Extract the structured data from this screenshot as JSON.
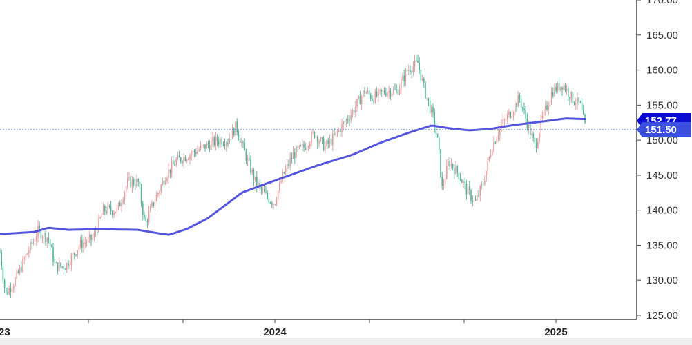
{
  "chart_data": {
    "type": "candlestick",
    "ylim": [
      125,
      170
    ],
    "y_ticks": [
      125,
      130,
      135,
      140,
      145,
      150,
      155,
      160,
      165,
      170
    ],
    "y_tick_labels": [
      "125.00",
      "130.00",
      "135.00",
      "140.00",
      "145.00",
      "150.00",
      "155.00",
      "160.00",
      "165.00",
      "170.00"
    ],
    "x_labels": [
      "23",
      "2024",
      "2025"
    ],
    "grid": false,
    "price_series_anchors": [
      [
        0,
        134
      ],
      [
        8,
        128
      ],
      [
        22,
        130
      ],
      [
        40,
        134
      ],
      [
        55,
        137
      ],
      [
        70,
        136
      ],
      [
        80,
        132
      ],
      [
        95,
        132
      ],
      [
        115,
        135
      ],
      [
        135,
        136
      ],
      [
        150,
        140
      ],
      [
        170,
        140
      ],
      [
        185,
        144
      ],
      [
        200,
        144
      ],
      [
        210,
        138
      ],
      [
        222,
        141
      ],
      [
        240,
        145
      ],
      [
        255,
        147
      ],
      [
        275,
        148
      ],
      [
        295,
        149
      ],
      [
        315,
        150
      ],
      [
        330,
        150
      ],
      [
        342,
        152
      ],
      [
        355,
        148
      ],
      [
        370,
        144
      ],
      [
        385,
        142
      ],
      [
        397,
        141
      ],
      [
        410,
        145
      ],
      [
        425,
        148
      ],
      [
        440,
        149
      ],
      [
        455,
        151
      ],
      [
        470,
        149
      ],
      [
        480,
        150
      ],
      [
        495,
        152
      ],
      [
        510,
        154
      ],
      [
        528,
        157
      ],
      [
        540,
        156
      ],
      [
        558,
        157
      ],
      [
        575,
        157
      ],
      [
        590,
        160
      ],
      [
        605,
        161
      ],
      [
        615,
        157
      ],
      [
        628,
        153
      ],
      [
        635,
        149
      ],
      [
        640,
        143
      ],
      [
        650,
        147
      ],
      [
        665,
        145
      ],
      [
        675,
        143
      ],
      [
        688,
        141
      ],
      [
        700,
        144
      ],
      [
        712,
        149
      ],
      [
        725,
        152
      ],
      [
        740,
        154
      ],
      [
        752,
        156
      ],
      [
        765,
        152
      ],
      [
        775,
        149
      ],
      [
        785,
        153
      ],
      [
        800,
        157
      ],
      [
        815,
        158
      ],
      [
        828,
        156
      ],
      [
        840,
        155
      ],
      [
        848,
        151.5
      ]
    ],
    "moving_average_anchors": [
      [
        0,
        136.6
      ],
      [
        50,
        136.9
      ],
      [
        70,
        137.5
      ],
      [
        100,
        137.2
      ],
      [
        140,
        137.3
      ],
      [
        200,
        137.2
      ],
      [
        230,
        136.7
      ],
      [
        245,
        136.5
      ],
      [
        270,
        137.3
      ],
      [
        300,
        138.8
      ],
      [
        330,
        141.0
      ],
      [
        350,
        142.5
      ],
      [
        380,
        143.6
      ],
      [
        420,
        145.0
      ],
      [
        460,
        146.4
      ],
      [
        510,
        147.9
      ],
      [
        550,
        149.6
      ],
      [
        590,
        151.0
      ],
      [
        625,
        152.1
      ],
      [
        650,
        151.7
      ],
      [
        680,
        151.4
      ],
      [
        710,
        151.6
      ],
      [
        740,
        152.1
      ],
      [
        780,
        152.6
      ],
      [
        820,
        153.1
      ],
      [
        848,
        153.0
      ]
    ],
    "price_colors": {
      "up": "#e0a0a0",
      "down": "#57b29a"
    },
    "ma_color": "#5555dd",
    "last_price": 151.5,
    "ma_value": 152.77
  },
  "badges": {
    "ma_label": "152.77",
    "last_label": "151.50",
    "ma_color": "#0b0bd4",
    "last_color": "#3a4fe0"
  }
}
